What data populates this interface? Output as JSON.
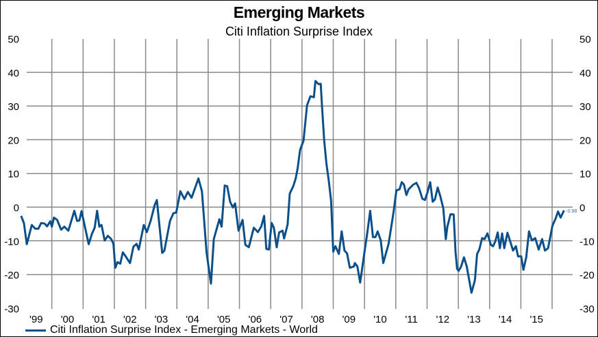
{
  "chart_data": {
    "type": "line",
    "title": "Emerging Markets",
    "subtitle": "Citi Inflation Surprise Index",
    "ylim": [
      -30,
      50
    ],
    "yticks": [
      "50",
      "40",
      "30",
      "20",
      "10",
      "0",
      "-10",
      "-20",
      "-30"
    ],
    "xticks": [
      "'99",
      "'00",
      "'01",
      "'02",
      "'03",
      "'04",
      "'05",
      "'06",
      "'07",
      "'08",
      "'09",
      "'10",
      "'11",
      "'12",
      "'13",
      "'14",
      "'15"
    ],
    "grid": true,
    "legend": "bottom-left",
    "series_color": "#0b4f8a",
    "last_value_label": "-0.98",
    "series": [
      {
        "name": "Citi Inflation Surprise Index - Emerging Markets - World",
        "points": [
          [
            1999.02,
            -2.6
          ],
          [
            1999.11,
            -4.8
          ],
          [
            1999.2,
            -11
          ],
          [
            1999.36,
            -5.3
          ],
          [
            1999.47,
            -6.4
          ],
          [
            1999.57,
            -6.4
          ],
          [
            1999.66,
            -4.7
          ],
          [
            1999.77,
            -4.9
          ],
          [
            1999.85,
            -5.7
          ],
          [
            1999.95,
            -4.2
          ],
          [
            2000.0,
            -5.8
          ],
          [
            2000.07,
            -3.1
          ],
          [
            2000.17,
            -3.8
          ],
          [
            2000.3,
            -6.7
          ],
          [
            2000.4,
            -5.8
          ],
          [
            2000.53,
            -7
          ],
          [
            2000.72,
            -1.1
          ],
          [
            2000.81,
            -4.1
          ],
          [
            2000.88,
            -4
          ],
          [
            2000.95,
            -1.2
          ],
          [
            2001.18,
            -11
          ],
          [
            2001.28,
            -8
          ],
          [
            2001.37,
            -6.1
          ],
          [
            2001.45,
            -1.1
          ],
          [
            2001.52,
            -5.8
          ],
          [
            2001.59,
            -5.3
          ],
          [
            2001.69,
            -9.9
          ],
          [
            2001.79,
            -8.5
          ],
          [
            2001.9,
            -9.5
          ],
          [
            2001.97,
            -10.9
          ],
          [
            2002.03,
            -18
          ],
          [
            2002.1,
            -16.3
          ],
          [
            2002.19,
            -16.8
          ],
          [
            2002.27,
            -13.4
          ],
          [
            2002.36,
            -14.6
          ],
          [
            2002.5,
            -16.6
          ],
          [
            2002.61,
            -11.7
          ],
          [
            2002.71,
            -10.9
          ],
          [
            2002.78,
            -12.6
          ],
          [
            2002.94,
            -5.3
          ],
          [
            2003.04,
            -7.4
          ],
          [
            2003.16,
            -4.1
          ],
          [
            2003.29,
            0.6
          ],
          [
            2003.36,
            2.1
          ],
          [
            2003.53,
            -13.6
          ],
          [
            2003.6,
            -12.9
          ],
          [
            2003.78,
            -4.1
          ],
          [
            2003.89,
            -1.8
          ],
          [
            2003.98,
            -1.6
          ],
          [
            2004.11,
            4.7
          ],
          [
            2004.24,
            2.4
          ],
          [
            2004.35,
            4.5
          ],
          [
            2004.47,
            2.8
          ],
          [
            2004.69,
            8.5
          ],
          [
            2004.8,
            4.7
          ],
          [
            2004.95,
            -13.6
          ],
          [
            2005.09,
            -22.7
          ],
          [
            2005.18,
            -9.5
          ],
          [
            2005.36,
            -3.6
          ],
          [
            2005.43,
            -5.8
          ],
          [
            2005.53,
            6.4
          ],
          [
            2005.61,
            6.2
          ],
          [
            2005.7,
            1.6
          ],
          [
            2005.79,
            -0.1
          ],
          [
            2005.86,
            1.1
          ],
          [
            2005.97,
            -7
          ],
          [
            2006.1,
            -3.8
          ],
          [
            2006.19,
            -11.2
          ],
          [
            2006.3,
            -11.9
          ],
          [
            2006.46,
            -6.1
          ],
          [
            2006.59,
            -7.4
          ],
          [
            2006.7,
            -5.7
          ],
          [
            2006.79,
            -2.6
          ],
          [
            2006.86,
            -12.4
          ],
          [
            2006.94,
            -12.6
          ],
          [
            2007.03,
            -4.7
          ],
          [
            2007.1,
            -6.1
          ],
          [
            2007.19,
            -11.9
          ],
          [
            2007.27,
            -7.5
          ],
          [
            2007.38,
            -7
          ],
          [
            2007.43,
            -9.3
          ],
          [
            2007.54,
            -5.1
          ],
          [
            2007.61,
            4
          ],
          [
            2007.72,
            6.2
          ],
          [
            2007.8,
            8.5
          ],
          [
            2007.86,
            11.5
          ],
          [
            2007.94,
            17
          ],
          [
            2008.05,
            19.7
          ],
          [
            2008.16,
            30.2
          ],
          [
            2008.27,
            32.9
          ],
          [
            2008.38,
            32.6
          ],
          [
            2008.43,
            37.4
          ],
          [
            2008.53,
            36.5
          ],
          [
            2008.6,
            36.6
          ],
          [
            2008.64,
            29.9
          ],
          [
            2008.71,
            19.7
          ],
          [
            2008.78,
            13
          ],
          [
            2008.86,
            7.6
          ],
          [
            2008.93,
            2
          ],
          [
            2009.0,
            -13.2
          ],
          [
            2009.07,
            -11.6
          ],
          [
            2009.18,
            -13.9
          ],
          [
            2009.27,
            -7.2
          ],
          [
            2009.36,
            -12.9
          ],
          [
            2009.44,
            -13.7
          ],
          [
            2009.53,
            -18
          ],
          [
            2009.66,
            -17.6
          ],
          [
            2009.69,
            -16.6
          ],
          [
            2009.77,
            -17.6
          ],
          [
            2009.86,
            -22.4
          ],
          [
            2009.99,
            -13.9
          ],
          [
            2010.09,
            -7.5
          ],
          [
            2010.18,
            -1.1
          ],
          [
            2010.27,
            -8.9
          ],
          [
            2010.35,
            -8.9
          ],
          [
            2010.42,
            -7.2
          ],
          [
            2010.52,
            -9.9
          ],
          [
            2010.6,
            -16.6
          ],
          [
            2010.77,
            -10.9
          ],
          [
            2010.93,
            -1.4
          ],
          [
            2011.02,
            5
          ],
          [
            2011.12,
            5.3
          ],
          [
            2011.19,
            7.4
          ],
          [
            2011.26,
            6.7
          ],
          [
            2011.34,
            3.6
          ],
          [
            2011.41,
            5.3
          ],
          [
            2011.56,
            6.7
          ],
          [
            2011.66,
            7.2
          ],
          [
            2011.74,
            5.7
          ],
          [
            2011.85,
            2.5
          ],
          [
            2011.93,
            2.1
          ],
          [
            2012.01,
            4.3
          ],
          [
            2012.1,
            7.4
          ],
          [
            2012.18,
            1.6
          ],
          [
            2012.25,
            2.3
          ],
          [
            2012.34,
            5.8
          ],
          [
            2012.43,
            3
          ],
          [
            2012.52,
            -0.4
          ],
          [
            2012.6,
            -9.5
          ],
          [
            2012.65,
            -5.8
          ],
          [
            2012.75,
            -2.1
          ],
          [
            2012.85,
            -2.2
          ],
          [
            2012.91,
            -13.2
          ],
          [
            2012.96,
            -18.3
          ],
          [
            2013.01,
            -18.9
          ],
          [
            2013.09,
            -17.6
          ],
          [
            2013.18,
            -14.9
          ],
          [
            2013.27,
            -17.6
          ],
          [
            2013.42,
            -25.4
          ],
          [
            2013.53,
            -21.7
          ],
          [
            2013.6,
            -13.9
          ],
          [
            2013.67,
            -12.6
          ],
          [
            2013.76,
            -9.2
          ],
          [
            2013.84,
            -9.5
          ],
          [
            2013.93,
            -7.8
          ],
          [
            2014.04,
            -11.2
          ],
          [
            2014.11,
            -11.6
          ],
          [
            2014.18,
            -10.2
          ],
          [
            2014.26,
            -7.5
          ],
          [
            2014.33,
            -12.2
          ],
          [
            2014.4,
            -7.8
          ],
          [
            2014.47,
            -12.2
          ],
          [
            2014.57,
            -7.6
          ],
          [
            2014.66,
            -10.2
          ],
          [
            2014.75,
            -12.9
          ],
          [
            2014.84,
            -11.6
          ],
          [
            2014.91,
            -14.6
          ],
          [
            2015.01,
            -14.6
          ],
          [
            2015.08,
            -18.6
          ],
          [
            2015.17,
            -14.9
          ],
          [
            2015.26,
            -7.2
          ],
          [
            2015.35,
            -9.9
          ],
          [
            2015.46,
            -9.2
          ],
          [
            2015.57,
            -12.6
          ],
          [
            2015.68,
            -9.5
          ],
          [
            2015.77,
            -12.9
          ],
          [
            2015.87,
            -12.2
          ],
          [
            2016.01,
            -5.5
          ],
          [
            2016.11,
            -3.4
          ],
          [
            2016.19,
            -1.3
          ],
          [
            2016.27,
            -3.1
          ],
          [
            2016.38,
            -0.98
          ]
        ]
      }
    ]
  }
}
